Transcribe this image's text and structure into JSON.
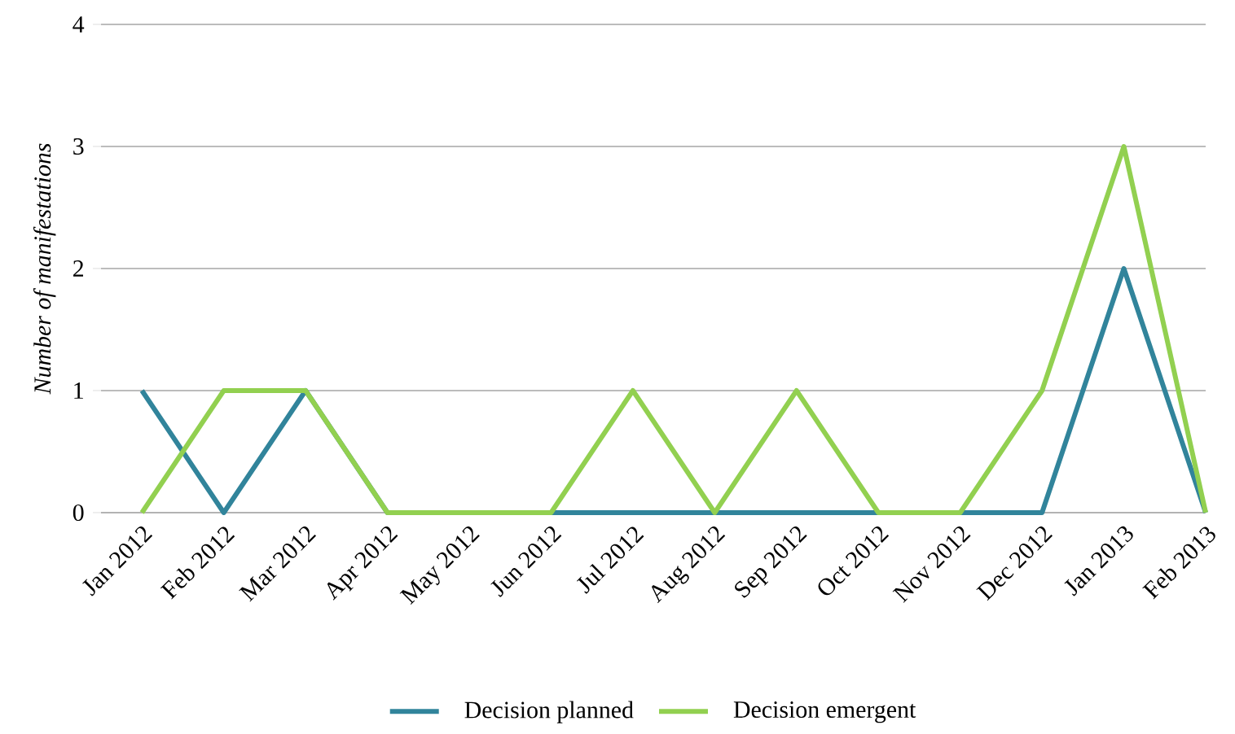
{
  "chart_data": {
    "type": "line",
    "ylabel": "Number of manifestations",
    "categories": [
      "Jan 2012",
      "Feb 2012",
      "Mar 2012",
      "Apr 2012",
      "May 2012",
      "Jun 2012",
      "Jul 2012",
      "Aug 2012",
      "Sep 2012",
      "Oct 2012",
      "Nov 2012",
      "Dec 2012",
      "Jan 2013",
      "Feb 2013"
    ],
    "series": [
      {
        "name": "Decision planned",
        "color": "#31849b",
        "values": [
          1,
          0,
          1,
          0,
          0,
          0,
          0,
          0,
          0,
          0,
          0,
          0,
          2,
          0
        ]
      },
      {
        "name": "Decision emergent",
        "color": "#92d050",
        "values": [
          0,
          1,
          1,
          0,
          0,
          0,
          1,
          0,
          1,
          0,
          0,
          1,
          3,
          0
        ]
      }
    ],
    "ylim": [
      0,
      4
    ],
    "yticks": [
      0,
      1,
      2,
      3,
      4
    ],
    "grid": "y",
    "legend": "bottom",
    "marker": "none",
    "line_style": "solid"
  }
}
